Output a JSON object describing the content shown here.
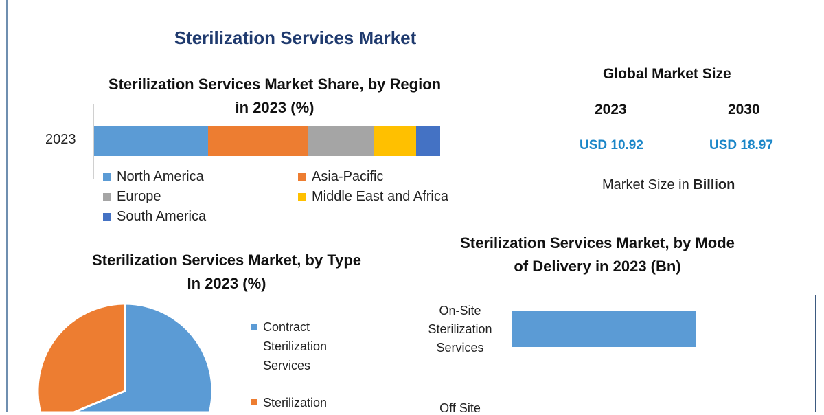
{
  "title": "Sterilization Services Market",
  "global": {
    "heading": "Global Market Size",
    "years": [
      "2023",
      "2030"
    ],
    "values": [
      "USD 10.92",
      "USD 18.97"
    ],
    "unit_prefix": "Market Size in ",
    "unit_bold": "Billion"
  },
  "chart_data": [
    {
      "type": "bar",
      "stacked": true,
      "orientation": "horizontal",
      "title": "Sterilization Services Market Share, by Region in 2023 (%)",
      "title_lines": [
        "Sterilization Services Market Share, by Region",
        "in 2023 (%)"
      ],
      "categories": [
        "2023"
      ],
      "series": [
        {
          "name": "North America",
          "values": [
            33
          ],
          "color": "#5b9bd5"
        },
        {
          "name": "Asia-Pacific",
          "values": [
            29
          ],
          "color": "#ed7d31"
        },
        {
          "name": "Europe",
          "values": [
            19
          ],
          "color": "#a5a5a5"
        },
        {
          "name": "Middle East and Africa",
          "values": [
            12
          ],
          "color": "#ffc000"
        },
        {
          "name": "South America",
          "values": [
            7
          ],
          "color": "#4472c4"
        }
      ],
      "legend": "bottom"
    },
    {
      "type": "pie",
      "title": "Sterilization Services Market, by Type In 2023 (%)",
      "title_lines": [
        "Sterilization Services Market, by Type",
        "In 2023 (%)"
      ],
      "slices": [
        {
          "name": "Contract Sterilization Services",
          "lines": [
            "Contract",
            "Sterilization",
            "Services"
          ],
          "value": 60,
          "color": "#5b9bd5"
        },
        {
          "name": "Sterilization ...",
          "lines": [
            "Sterilization"
          ],
          "value": 40,
          "color": "#ed7d31"
        }
      ],
      "legend": "right"
    },
    {
      "type": "bar",
      "orientation": "horizontal",
      "title": "Sterilization Services Market, by Mode of Delivery in 2023 (Bn)",
      "title_lines": [
        "Sterilization Services Market, by Mode",
        "of Delivery in 2023 (Bn)"
      ],
      "categories": [
        [
          "On-Site",
          "Sterilization",
          "Services"
        ],
        [
          "Off Site"
        ]
      ],
      "values": [
        6.5,
        null
      ],
      "color": "#5b9bd5"
    }
  ]
}
